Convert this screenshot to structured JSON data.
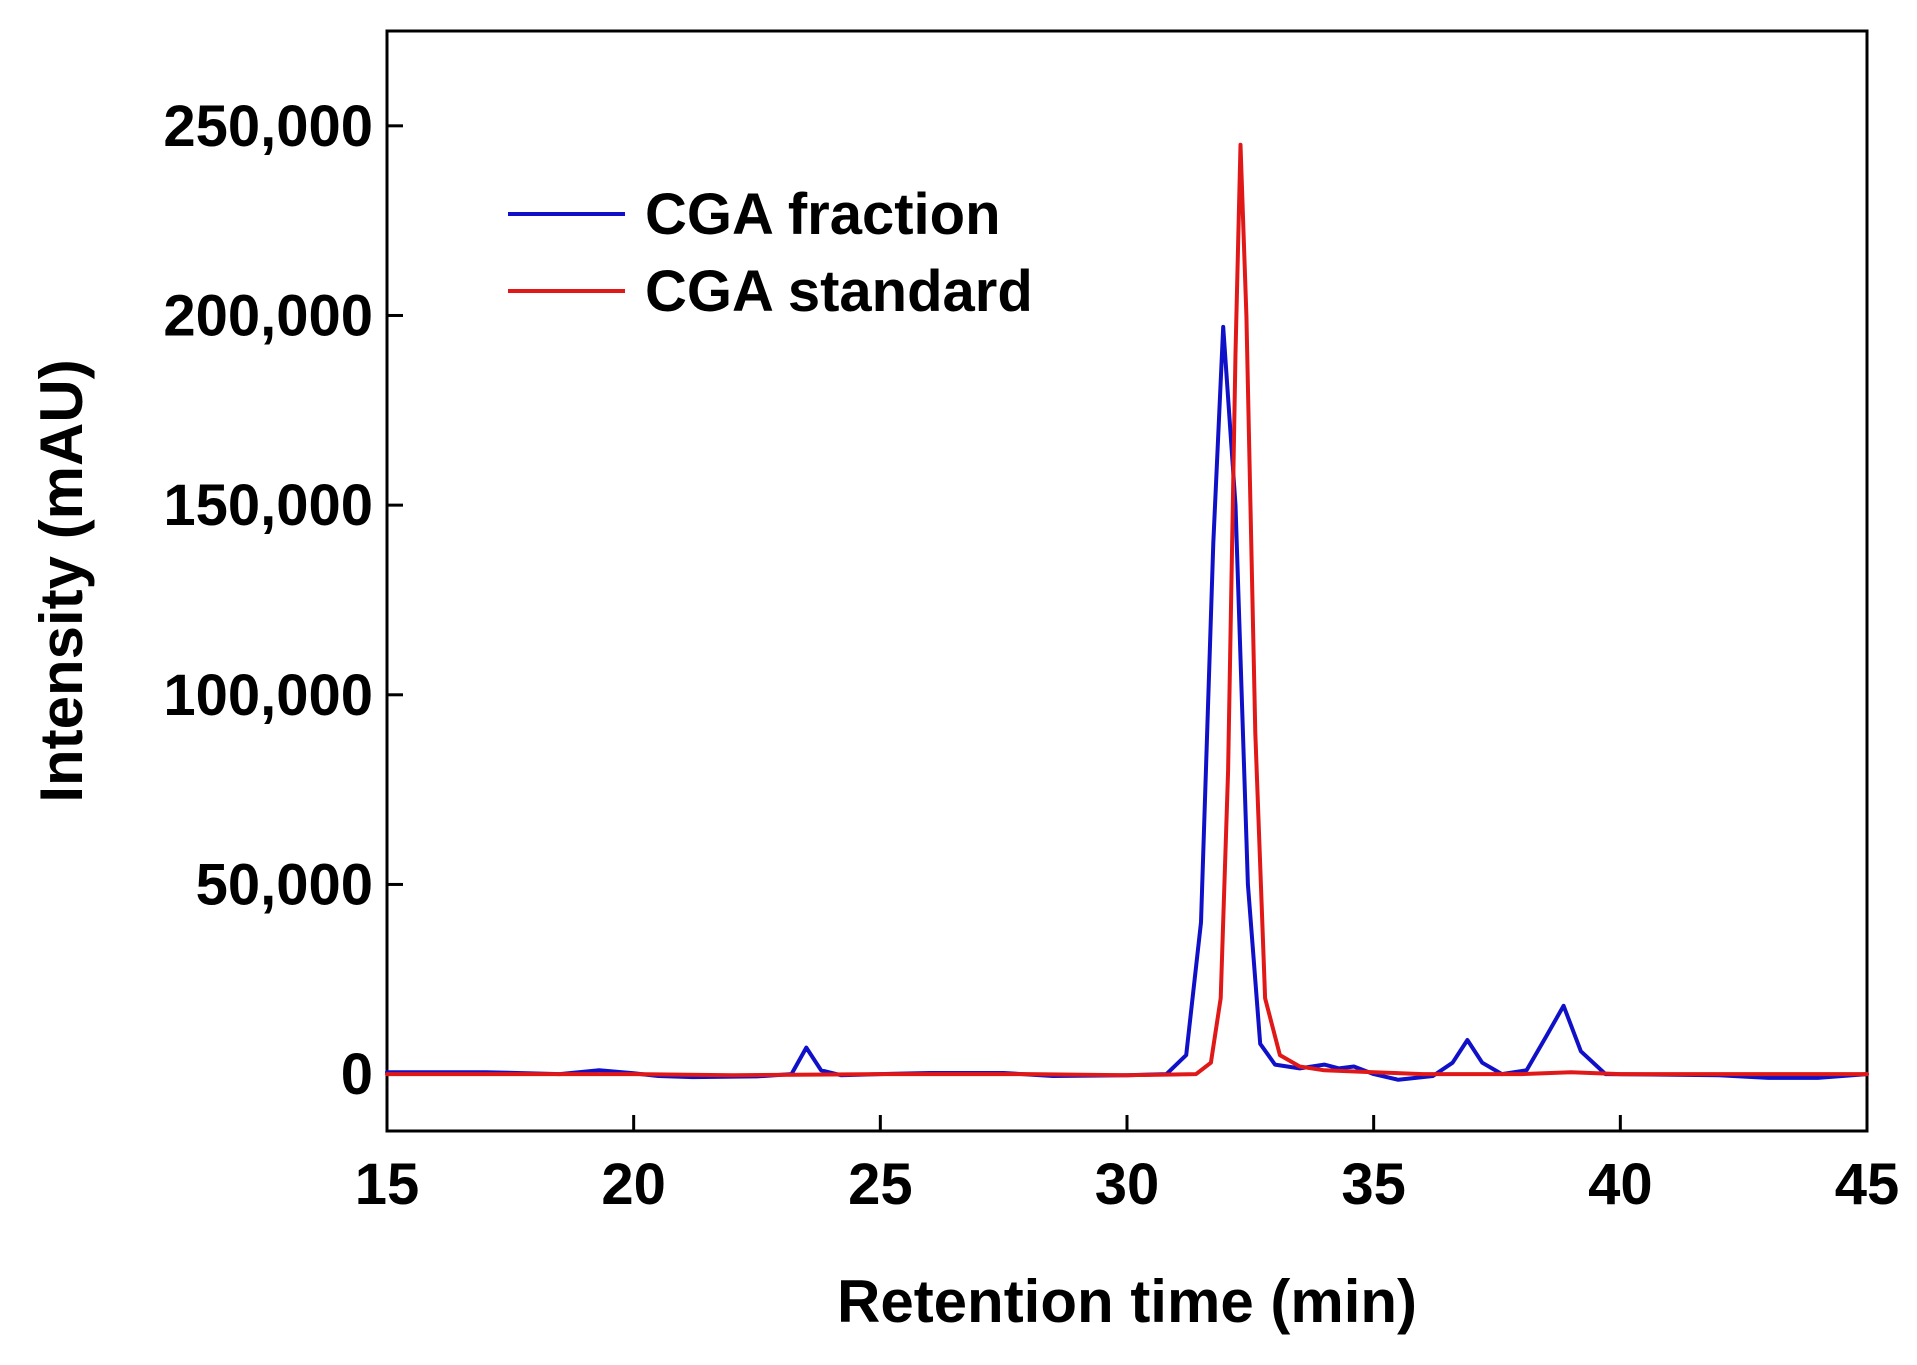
{
  "chart_data": {
    "type": "line",
    "title": "",
    "xlabel": "Retention time (min)",
    "ylabel": "Intensity (mAU)",
    "xlim": [
      15,
      45
    ],
    "ylim": [
      -15000,
      275000
    ],
    "x_ticks": [
      15,
      20,
      25,
      30,
      35,
      40,
      45
    ],
    "x_tick_labels": [
      "15",
      "20",
      "25",
      "30",
      "35",
      "40",
      "45"
    ],
    "y_ticks": [
      0,
      50000,
      100000,
      150000,
      200000,
      250000
    ],
    "y_tick_labels": [
      "0",
      "50,000",
      "100,000",
      "150,000",
      "200,000",
      "250,000"
    ],
    "grid": false,
    "legend_position": "top-left",
    "series": [
      {
        "name": "CGA fraction",
        "color": "#1010c8",
        "points": [
          [
            15,
            500
          ],
          [
            17,
            500
          ],
          [
            18.5,
            0
          ],
          [
            19.3,
            1000
          ],
          [
            20,
            200
          ],
          [
            20.5,
            -500
          ],
          [
            21.2,
            -800
          ],
          [
            22.5,
            -600
          ],
          [
            23.2,
            0
          ],
          [
            23.5,
            7000
          ],
          [
            23.8,
            1000
          ],
          [
            24.2,
            -300
          ],
          [
            25,
            0
          ],
          [
            26,
            300
          ],
          [
            27.5,
            300
          ],
          [
            28.5,
            -500
          ],
          [
            30,
            -300
          ],
          [
            30.8,
            0
          ],
          [
            31.2,
            5000
          ],
          [
            31.5,
            40000
          ],
          [
            31.75,
            140000
          ],
          [
            31.95,
            197000
          ],
          [
            32.2,
            150000
          ],
          [
            32.45,
            50000
          ],
          [
            32.7,
            8000
          ],
          [
            33,
            2500
          ],
          [
            33.5,
            1500
          ],
          [
            34,
            2500
          ],
          [
            34.3,
            1500
          ],
          [
            34.6,
            2000
          ],
          [
            35,
            0
          ],
          [
            35.5,
            -1500
          ],
          [
            36.2,
            -500
          ],
          [
            36.6,
            3000
          ],
          [
            36.9,
            9000
          ],
          [
            37.2,
            3000
          ],
          [
            37.6,
            0
          ],
          [
            38.1,
            1000
          ],
          [
            38.5,
            10000
          ],
          [
            38.85,
            18000
          ],
          [
            39.2,
            6000
          ],
          [
            39.7,
            0
          ],
          [
            42,
            -300
          ],
          [
            43,
            -1000
          ],
          [
            44,
            -1000
          ],
          [
            45,
            0
          ]
        ]
      },
      {
        "name": "CGA standard",
        "color": "#e01818",
        "points": [
          [
            15,
            0
          ],
          [
            20,
            0
          ],
          [
            22,
            -300
          ],
          [
            25,
            0
          ],
          [
            28,
            0
          ],
          [
            30,
            -300
          ],
          [
            31.4,
            0
          ],
          [
            31.7,
            3000
          ],
          [
            31.9,
            20000
          ],
          [
            32.05,
            80000
          ],
          [
            32.2,
            190000
          ],
          [
            32.3,
            245000
          ],
          [
            32.42,
            200000
          ],
          [
            32.6,
            90000
          ],
          [
            32.8,
            20000
          ],
          [
            33.1,
            5000
          ],
          [
            33.5,
            2000
          ],
          [
            34,
            1000
          ],
          [
            35,
            500
          ],
          [
            36,
            0
          ],
          [
            38,
            0
          ],
          [
            39,
            500
          ],
          [
            40,
            0
          ],
          [
            45,
            0
          ]
        ]
      }
    ]
  }
}
